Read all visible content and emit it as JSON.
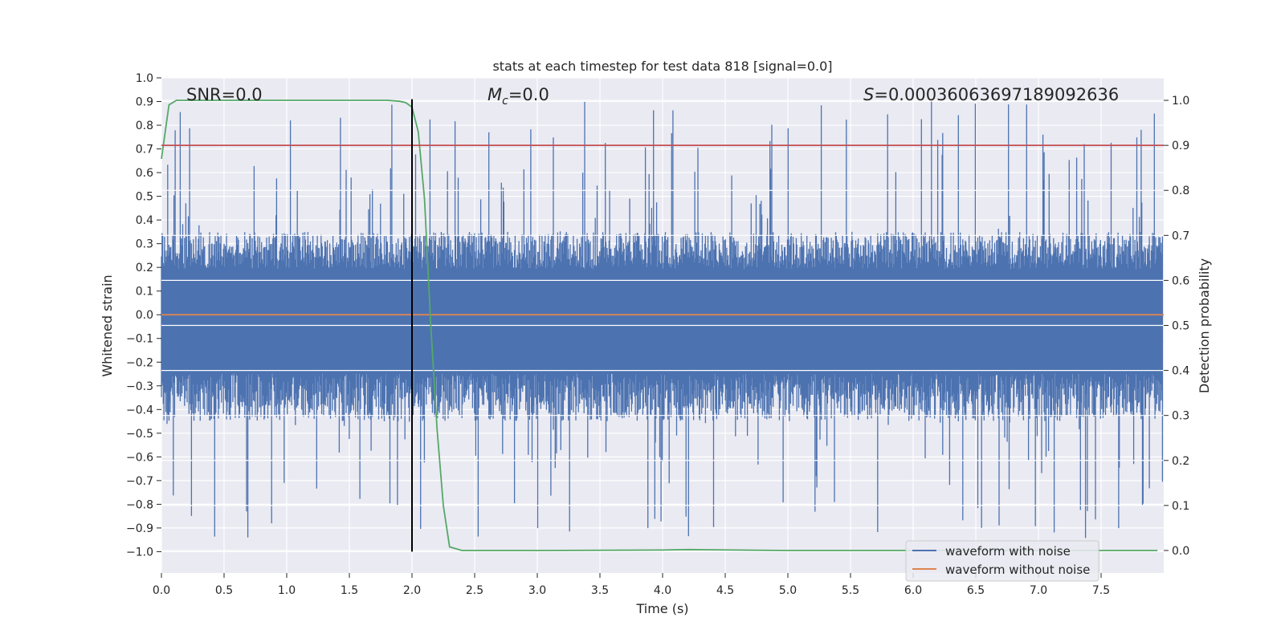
{
  "chart_data": {
    "type": "line",
    "title": "stats at each timestep for test data 818 [signal=0.0]",
    "xlabel": "Time (s)",
    "ylabel_left": "Whitened strain",
    "ylabel_right": "Detection probability",
    "xlim": [
      0.0,
      8.0
    ],
    "ylim_left": [
      -1.09,
      1.0
    ],
    "ylim_right": [
      -0.05,
      1.05
    ],
    "xticks": [
      0.0,
      0.5,
      1.0,
      1.5,
      2.0,
      2.5,
      3.0,
      3.5,
      4.0,
      4.5,
      5.0,
      5.5,
      6.0,
      6.5,
      7.0,
      7.5
    ],
    "xtick_labels": [
      "0.0",
      "0.5",
      "1.0",
      "1.5",
      "2.0",
      "2.5",
      "3.0",
      "3.5",
      "4.0",
      "4.5",
      "5.0",
      "5.5",
      "6.0",
      "6.5",
      "7.0",
      "7.5"
    ],
    "yticks_left": [
      1.0,
      0.9,
      0.8,
      0.7,
      0.6,
      0.5,
      0.4,
      0.3,
      0.2,
      0.1,
      0.0,
      -0.1,
      -0.2,
      -0.3,
      -0.4,
      -0.5,
      -0.6,
      -0.7,
      -0.8,
      -0.9,
      -1.0
    ],
    "ytick_labels_left": [
      "1.0",
      "0.9",
      "0.8",
      "0.7",
      "0.6",
      "0.5",
      "0.4",
      "0.3",
      "0.2",
      "0.1",
      "0.0",
      "−0.1",
      "−0.2",
      "−0.3",
      "−0.4",
      "−0.5",
      "−0.6",
      "−0.7",
      "−0.8",
      "−0.9",
      "−1.0"
    ],
    "yticks_right": [
      1.0,
      0.9,
      0.8,
      0.7,
      0.6,
      0.5,
      0.4,
      0.3,
      0.2,
      0.1,
      0.0
    ],
    "ytick_labels_right": [
      "1.0",
      "0.9",
      "0.8",
      "0.7",
      "0.6",
      "0.5",
      "0.4",
      "0.3",
      "0.2",
      "0.1",
      "0.0"
    ],
    "annotations": {
      "snr": "SNR=0.0",
      "mc_symbol": "M",
      "mc_sub": "c",
      "mc_value": "=0.0",
      "s_symbol": "S",
      "s_value": "=0.0003606369718909263​6"
    },
    "series": [
      {
        "name": "waveform with noise",
        "axis": "left",
        "color": "#4c72b0",
        "description_stats": {
          "typical_upper": 0.35,
          "typical_lower": -0.45,
          "max": 0.9,
          "min": -0.95
        }
      },
      {
        "name": "waveform without noise",
        "axis": "left",
        "color": "#dd8452",
        "x": [
          0.0,
          8.0
        ],
        "y": [
          0.0,
          0.0
        ]
      },
      {
        "name": "detection probability",
        "axis": "right",
        "color": "#55a868",
        "x": [
          0.0,
          0.06,
          0.12,
          0.2,
          0.5,
          1.0,
          1.5,
          1.8,
          1.9,
          1.95,
          2.0,
          2.05,
          2.1,
          2.15,
          2.2,
          2.25,
          2.3,
          2.4,
          3.0,
          4.0,
          4.2,
          5.0,
          6.0,
          7.0,
          7.95
        ],
        "y": [
          0.87,
          0.99,
          1.0,
          1.0,
          1.0,
          1.0,
          1.0,
          1.0,
          0.998,
          0.995,
          0.985,
          0.93,
          0.78,
          0.5,
          0.27,
          0.1,
          0.008,
          0.0,
          0.0,
          0.001,
          0.002,
          0.0,
          0.0,
          0.0,
          0.0
        ]
      },
      {
        "name": "threshold",
        "axis": "right",
        "color": "#c44e52",
        "x": [
          0.0,
          8.0
        ],
        "y": [
          0.9,
          0.9
        ]
      },
      {
        "name": "marker",
        "axis": "left",
        "color": "#000000",
        "x": [
          2.0,
          2.0
        ],
        "y": [
          -1.0,
          0.91
        ]
      }
    ],
    "legend": {
      "placement": "bottom-right",
      "entries": [
        {
          "label": "waveform with noise",
          "color": "#4c72b0"
        },
        {
          "label": "waveform without noise",
          "color": "#dd8452"
        }
      ]
    },
    "colors": {
      "plot_background": "#eaeaf2",
      "grid": "#ffffff",
      "text": "#262626"
    }
  }
}
